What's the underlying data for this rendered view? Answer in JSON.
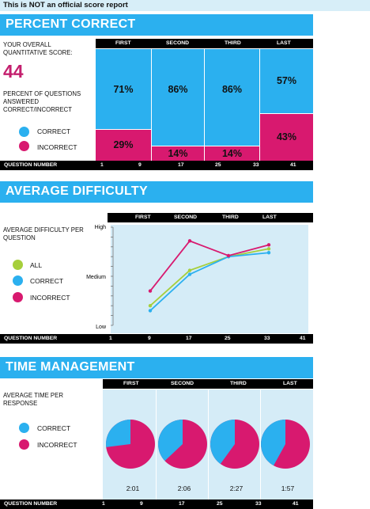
{
  "disclaimer": "This is NOT an official score report",
  "colors": {
    "accent": "#2bb0ef",
    "correct": "#2bb0ef",
    "incorrect": "#d8196f",
    "all": "#a6cf3c",
    "plot_bg": "#d5ecf7"
  },
  "percent_correct": {
    "title": "PERCENT CORRECT",
    "score_label": "YOUR OVERALL QUANTITATIVE SCORE:",
    "score": "44",
    "pct_label": "PERCENT OF QUESTIONS ANSWERED CORRECT/INCORRECT",
    "legend": {
      "correct": "CORRECT",
      "incorrect": "INCORRECT"
    },
    "columns": [
      "FIRST",
      "SECOND",
      "THIRD",
      "LAST"
    ],
    "correct_pct": [
      71,
      86,
      86,
      57
    ],
    "incorrect_pct": [
      29,
      14,
      14,
      43
    ],
    "correct_labels": [
      "71%",
      "86%",
      "86%",
      "57%"
    ],
    "incorrect_labels": [
      "29%",
      "14%",
      "14%",
      "43%"
    ],
    "question_number_label": "QUESTION NUMBER",
    "question_numbers": [
      "1",
      "9",
      "17",
      "25",
      "33",
      "41"
    ]
  },
  "average_difficulty": {
    "title": "AVERAGE DIFFICULTY",
    "label": "AVERAGE DIFFICULTY PER QUESTION",
    "legend": {
      "all": "ALL",
      "correct": "CORRECT",
      "incorrect": "INCORRECT"
    },
    "columns": [
      "FIRST",
      "SECOND",
      "THIRD",
      "LAST"
    ],
    "question_number_label": "QUESTION NUMBER",
    "question_numbers": [
      "1",
      "9",
      "17",
      "25",
      "33",
      "41"
    ]
  },
  "chart_data": {
    "type": "line",
    "x": [
      9,
      17,
      25,
      33
    ],
    "xlim": [
      1,
      41
    ],
    "y_tick_labels": [
      "High",
      "Medium",
      "Low"
    ],
    "ylim": [
      0,
      1
    ],
    "series": [
      {
        "name": "ALL",
        "values": [
          0.2,
          0.56,
          0.7,
          0.78
        ]
      },
      {
        "name": "CORRECT",
        "values": [
          0.15,
          0.52,
          0.7,
          0.74
        ]
      },
      {
        "name": "INCORRECT",
        "values": [
          0.35,
          0.86,
          0.71,
          0.82
        ]
      }
    ]
  },
  "time_management": {
    "title": "TIME MANAGEMENT",
    "label": "AVERAGE TIME PER RESPONSE",
    "legend": {
      "correct": "CORRECT",
      "incorrect": "INCORRECT"
    },
    "columns": [
      "FIRST",
      "SECOND",
      "THIRD",
      "LAST"
    ],
    "times": [
      "2:01",
      "2:06",
      "2:27",
      "1:57"
    ],
    "correct_fraction": [
      0.27,
      0.37,
      0.4,
      0.42
    ],
    "question_number_label": "QUESTION NUMBER",
    "question_numbers": [
      "1",
      "9",
      "17",
      "25",
      "33",
      "41"
    ]
  }
}
